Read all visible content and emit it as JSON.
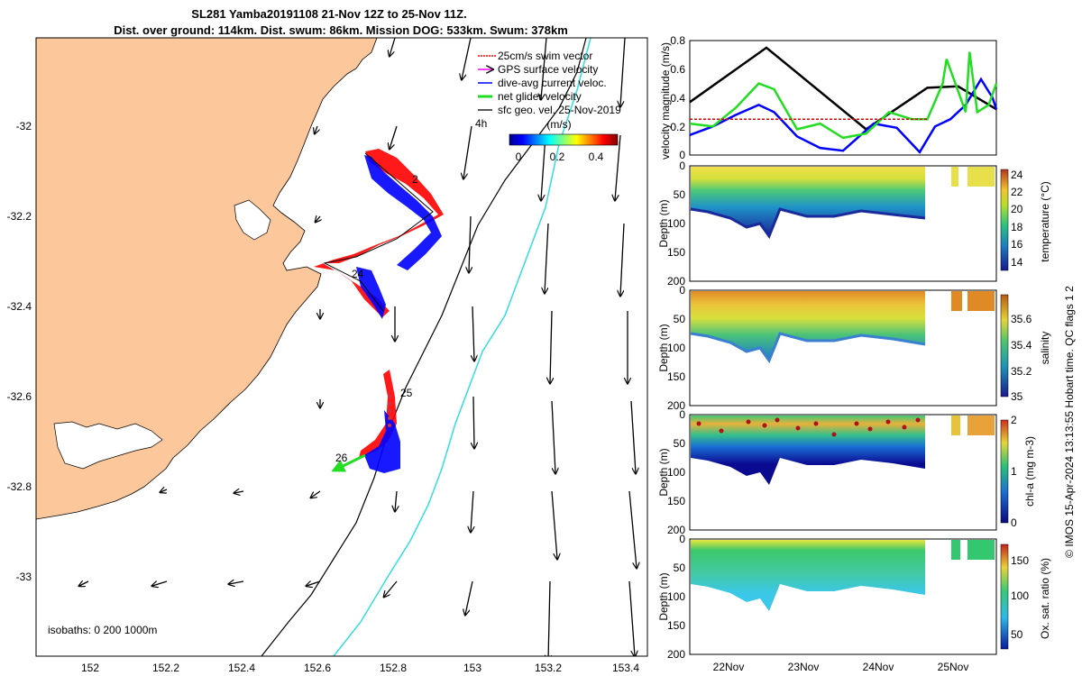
{
  "figure": {
    "title_line1": "SL281 Yamba20191108 21-Nov 12Z to 25-Nov 11Z.",
    "title_line2": "Dist. over ground: 114km. Dist. swum: 86km. Mission DOG: 533km. Swum: 378km",
    "isobaths_note": "isobaths: 0   200  1000m",
    "copyright": "© IMOS 15-Apr-2024 13:13:55 Hobart time. QC flags 1  2"
  },
  "map": {
    "lon_ticks": [
      "152",
      "152.2",
      "152.4",
      "152.6",
      "152.8",
      "153",
      "153.2",
      "153.4"
    ],
    "lat_ticks": [
      "-32",
      "-32.2",
      "-32.4",
      "-32.6",
      "-32.8",
      "-33"
    ],
    "legend": [
      {
        "label": "25cm/s swim vector",
        "color": "#ff0000"
      },
      {
        "label": "GPS surface velocity",
        "color": "#ff00ff"
      },
      {
        "label": "dive-avg current veloc.",
        "color": "#0000ff"
      },
      {
        "label": "net glider velocity",
        "color": "#22dd22"
      },
      {
        "label": "sfc geo. vel. 25-Nov-2019",
        "color": "#000000"
      }
    ],
    "legend_4h": "4h",
    "colorbar_label": "(m/s)",
    "colorbar_ticks": [
      "0",
      "0.2",
      "0.4"
    ],
    "annotations": [
      "2",
      "24",
      "25",
      "26"
    ],
    "colors": {
      "land": "#fcc79a",
      "track_red": "#ff0000",
      "track_blue": "#0000ff",
      "isobath_200": "#000000",
      "isobath_1000": "#33dddd"
    }
  },
  "chart_data": [
    {
      "type": "line",
      "ylabel": "velocity magnitude (m/s)",
      "ylim": [
        0,
        0.8
      ],
      "y_ticks": [
        "0",
        "0.2",
        "0.4",
        "0.6",
        "0.8"
      ],
      "x_ticks": [
        "22Nov",
        "23Nov",
        "24Nov",
        "25Nov"
      ],
      "series": [
        {
          "color": "#000000",
          "x": [
            21.5,
            22.5,
            23.8,
            24.6,
            25.0,
            25.5
          ],
          "y": [
            0.37,
            0.75,
            0.18,
            0.47,
            0.48,
            0.32
          ]
        },
        {
          "color": "#0000ff",
          "x": [
            21.5,
            21.8,
            22.1,
            22.4,
            22.6,
            22.9,
            23.2,
            23.5,
            23.9,
            24.2,
            24.5,
            24.7,
            24.9,
            25.1,
            25.3,
            25.45,
            25.5
          ],
          "y": [
            0.14,
            0.2,
            0.28,
            0.35,
            0.3,
            0.13,
            0.05,
            0.03,
            0.22,
            0.19,
            0.02,
            0.2,
            0.25,
            0.35,
            0.53,
            0.4,
            0.32
          ]
        },
        {
          "color": "#22dd22",
          "x": [
            21.5,
            21.8,
            22.1,
            22.4,
            22.6,
            22.9,
            23.2,
            23.5,
            23.8,
            24.1,
            24.4,
            24.6,
            24.8,
            24.85,
            25.1,
            25.15,
            25.25,
            25.4,
            25.5
          ],
          "y": [
            0.22,
            0.2,
            0.33,
            0.5,
            0.46,
            0.18,
            0.22,
            0.12,
            0.15,
            0.3,
            0.25,
            0.25,
            0.5,
            0.67,
            0.3,
            0.72,
            0.3,
            0.35,
            0.5
          ]
        },
        {
          "color": "#dd0000",
          "x": [
            21.5,
            24.6
          ],
          "y": [
            0.25,
            0.25
          ]
        }
      ]
    },
    {
      "type": "heatmap",
      "ylabel": "Depth (m)",
      "colorbar_label": "temperature (°C)",
      "colorbar_ticks": [
        "14",
        "16",
        "18",
        "20",
        "22",
        "24"
      ],
      "ylim": [
        200,
        0
      ],
      "y_ticks": [
        "0",
        "50",
        "100",
        "150",
        "200"
      ]
    },
    {
      "type": "heatmap",
      "ylabel": "Depth (m)",
      "colorbar_label": "salinity",
      "colorbar_ticks": [
        "35",
        "35.2",
        "35.4",
        "35.6"
      ],
      "ylim": [
        200,
        0
      ],
      "y_ticks": [
        "0",
        "50",
        "100",
        "150",
        "200"
      ]
    },
    {
      "type": "heatmap",
      "ylabel": "Depth (m)",
      "colorbar_label": "chl-a (mg m-3)",
      "colorbar_ticks": [
        "0",
        "1",
        "2"
      ],
      "ylim": [
        200,
        0
      ],
      "y_ticks": [
        "0",
        "50",
        "100",
        "150",
        "200"
      ]
    },
    {
      "type": "heatmap",
      "ylabel": "Depth (m)",
      "colorbar_label": "Ox. sat. ratio (%)",
      "colorbar_ticks": [
        "50",
        "100",
        "150"
      ],
      "ylim": [
        200,
        0
      ],
      "y_ticks": [
        "0",
        "50",
        "100",
        "150",
        "200"
      ],
      "x_ticks": [
        "22Nov",
        "23Nov",
        "24Nov",
        "25Nov"
      ]
    }
  ]
}
